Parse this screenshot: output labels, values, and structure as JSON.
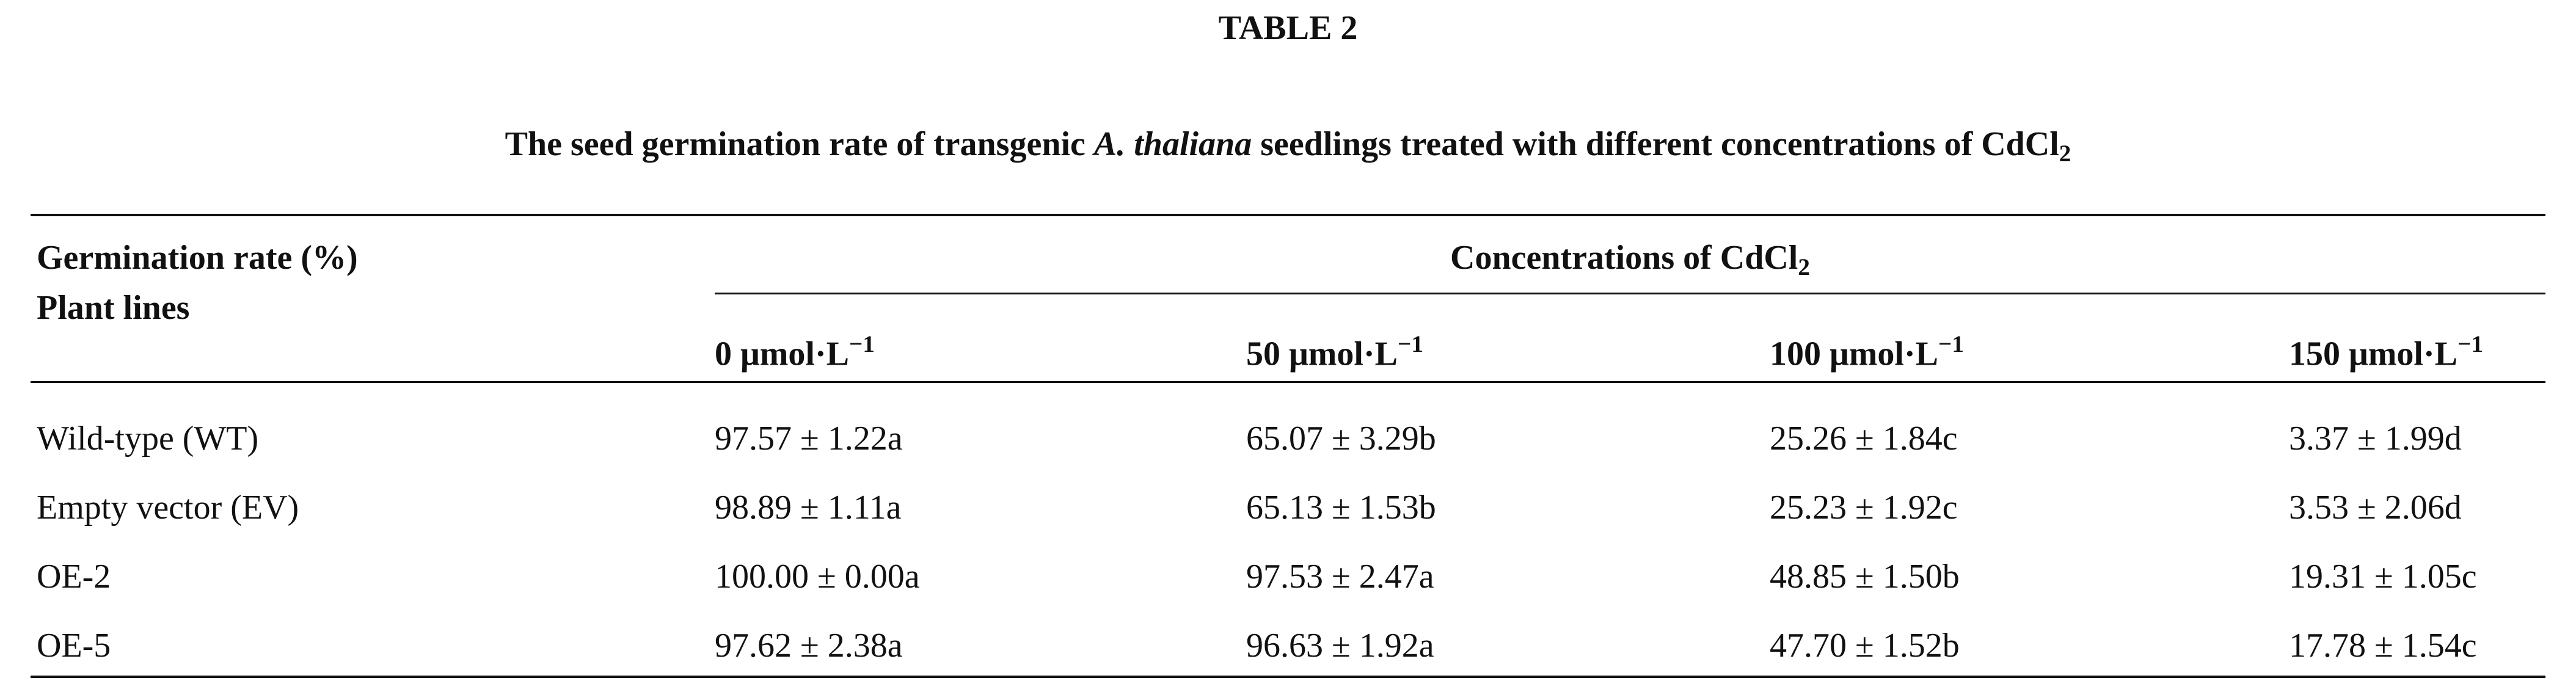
{
  "header": {
    "title": "TABLE 2",
    "caption": {
      "start": "The seed germination rate of transgenic ",
      "italic": "A. thaliana",
      "end": " seedlings treated with different concentrations of CdCl",
      "subscript": "2"
    }
  },
  "table": {
    "row_header": [
      "Germination rate (%)",
      "Plant lines"
    ],
    "group_header": {
      "text": "Concentrations of CdCl",
      "subscript": "2"
    },
    "columns": [
      {
        "text": "0 μmol·L",
        "superscript": "−1"
      },
      {
        "text": "50 μmol·L",
        "superscript": "−1"
      },
      {
        "text": "100 μmol·L",
        "superscript": "−1"
      },
      {
        "text": "150 μmol·L",
        "superscript": "−1"
      }
    ],
    "rows": [
      [
        "Wild-type (WT)",
        "97.57 ± 1.22a",
        "65.07 ± 3.29b",
        "25.26 ± 1.84c",
        "3.37 ± 1.99d"
      ],
      [
        "Empty vector (EV)",
        "98.89 ± 1.11a",
        "65.13 ± 1.53b",
        "25.23 ± 1.92c",
        "3.53 ± 2.06d"
      ],
      [
        "OE-2",
        "100.00 ± 0.00a",
        "97.53 ± 2.47a",
        "48.85 ± 1.50b",
        "19.31 ± 1.05c"
      ],
      [
        "OE-5",
        "97.62 ± 2.38a",
        "96.63 ± 1.92a",
        "47.70 ± 1.52b",
        "17.78 ± 1.54c"
      ]
    ]
  }
}
